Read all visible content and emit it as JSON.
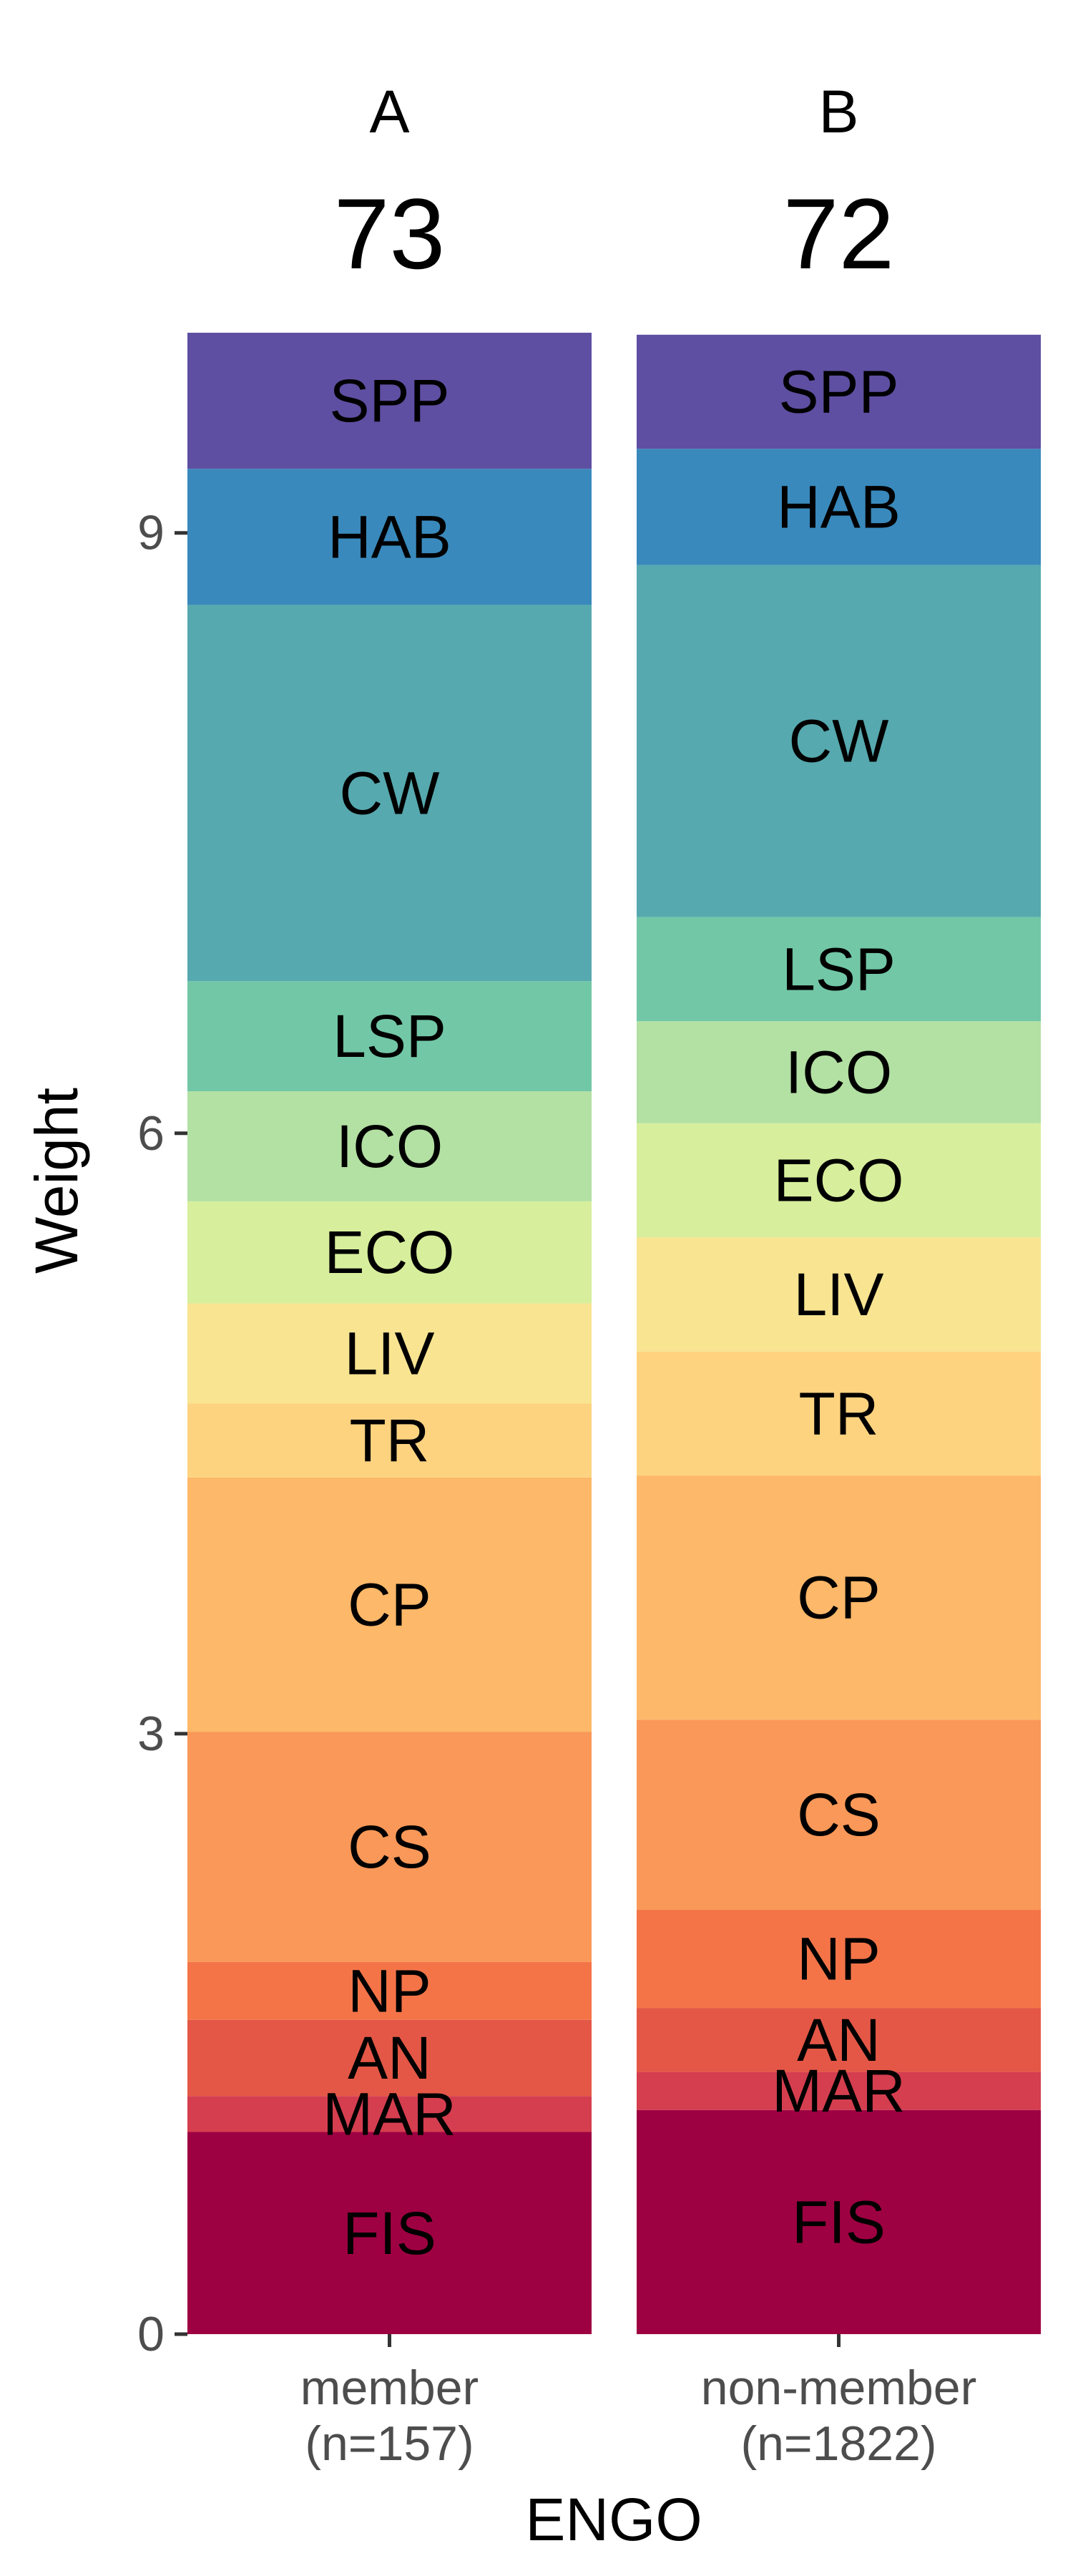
{
  "chart_data": {
    "type": "bar",
    "stacked": true,
    "xlabel": "ENGO",
    "ylabel": "Weight",
    "ylim": [
      0,
      10
    ],
    "y_ticks": [
      0,
      3,
      6,
      9
    ],
    "grid": false,
    "legend": "none",
    "categories": [
      {
        "line1": "member",
        "line2": "(n=157)"
      },
      {
        "line1": "non-member",
        "line2": "(n=1822)"
      }
    ],
    "panels": [
      {
        "letter": "A",
        "score": "73"
      },
      {
        "letter": "B",
        "score": "72"
      }
    ],
    "series": [
      {
        "name": "FIS",
        "color": "#9E0142",
        "values": [
          1.01,
          1.12
        ]
      },
      {
        "name": "MAR",
        "color": "#D53E4F",
        "values": [
          0.18,
          0.19
        ]
      },
      {
        "name": "AN",
        "color": "#E45746",
        "values": [
          0.38,
          0.32
        ]
      },
      {
        "name": "NP",
        "color": "#F47448",
        "values": [
          0.29,
          0.49
        ]
      },
      {
        "name": "CS",
        "color": "#F99858",
        "values": [
          1.15,
          0.95
        ]
      },
      {
        "name": "CP",
        "color": "#FDB869",
        "values": [
          1.27,
          1.22
        ]
      },
      {
        "name": "TR",
        "color": "#FED380",
        "values": [
          0.37,
          0.62
        ]
      },
      {
        "name": "LIV",
        "color": "#F8E491",
        "values": [
          0.5,
          0.57
        ]
      },
      {
        "name": "ECO",
        "color": "#D7EE9C",
        "values": [
          0.51,
          0.57
        ]
      },
      {
        "name": "ICO",
        "color": "#B3E0A3",
        "values": [
          0.55,
          0.51
        ]
      },
      {
        "name": "LSP",
        "color": "#72C7A6",
        "values": [
          0.55,
          0.52
        ]
      },
      {
        "name": "CW",
        "color": "#56A9AE",
        "values": [
          1.88,
          1.76
        ]
      },
      {
        "name": "HAB",
        "color": "#3989BC",
        "values": [
          0.68,
          0.58
        ]
      },
      {
        "name": "SPP",
        "color": "#5E4FA2",
        "values": [
          0.68,
          0.57
        ]
      }
    ]
  }
}
